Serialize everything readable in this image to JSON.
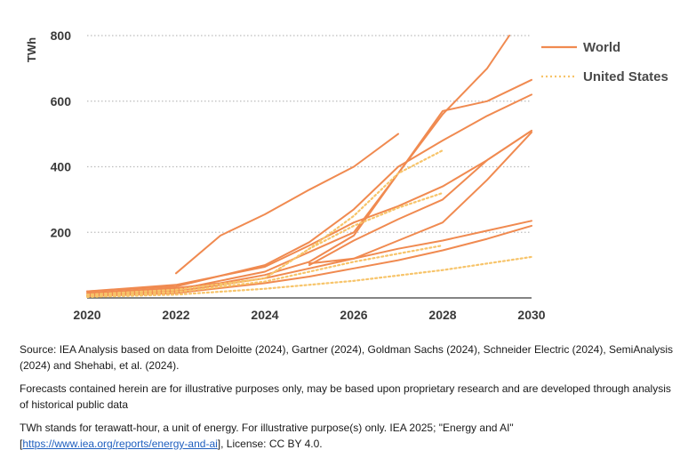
{
  "chart_data": {
    "type": "line",
    "ylabel": "TWh",
    "xlabel": "",
    "xlim": [
      2020,
      2030
    ],
    "ylim": [
      0,
      800
    ],
    "x_ticks": [
      "2020",
      "2022",
      "2024",
      "2026",
      "2028",
      "2030"
    ],
    "y_ticks": [
      "200",
      "400",
      "600",
      "800"
    ],
    "grid": "horizontal dotted",
    "legend_position": "top-right",
    "legend": [
      {
        "label": "World",
        "color": "#f08a50",
        "style": "solid"
      },
      {
        "label": "United States",
        "color": "#f7c46a",
        "style": "dotted"
      }
    ],
    "series": [
      {
        "group": "World",
        "points": [
          [
            2022,
            75
          ],
          [
            2023,
            190
          ],
          [
            2024,
            255
          ],
          [
            2025,
            330
          ],
          [
            2026,
            400
          ],
          [
            2027,
            500
          ]
        ]
      },
      {
        "group": "World",
        "points": [
          [
            2020,
            10
          ],
          [
            2022,
            25
          ],
          [
            2024,
            80
          ],
          [
            2026,
            200
          ],
          [
            2028,
            560
          ],
          [
            2029,
            700
          ],
          [
            2029.5,
            800
          ]
        ]
      },
      {
        "group": "World",
        "points": [
          [
            2020,
            15
          ],
          [
            2022,
            30
          ],
          [
            2023,
            45
          ],
          [
            2024,
            70
          ],
          [
            2025,
            110
          ],
          [
            2026,
            190
          ],
          [
            2027,
            380
          ],
          [
            2028,
            570
          ],
          [
            2029,
            600
          ],
          [
            2030,
            665
          ]
        ]
      },
      {
        "group": "World",
        "points": [
          [
            2020,
            20
          ],
          [
            2022,
            35
          ],
          [
            2024,
            100
          ],
          [
            2025,
            170
          ],
          [
            2026,
            270
          ],
          [
            2027,
            400
          ],
          [
            2028,
            480
          ],
          [
            2029,
            555
          ],
          [
            2030,
            620
          ]
        ]
      },
      {
        "group": "World",
        "points": [
          [
            2020,
            20
          ],
          [
            2022,
            40
          ],
          [
            2024,
            95
          ],
          [
            2025,
            160
          ],
          [
            2026,
            230
          ],
          [
            2027,
            280
          ],
          [
            2028,
            340
          ],
          [
            2029,
            420
          ],
          [
            2030,
            510
          ]
        ]
      },
      {
        "group": "World",
        "points": [
          [
            2025,
            105
          ],
          [
            2026,
            120
          ],
          [
            2027,
            175
          ],
          [
            2028,
            230
          ],
          [
            2029,
            360
          ],
          [
            2030,
            505
          ]
        ]
      },
      {
        "group": "World",
        "points": [
          [
            2025,
            100
          ],
          [
            2026,
            175
          ],
          [
            2027,
            240
          ],
          [
            2028,
            300
          ],
          [
            2029,
            420
          ],
          [
            2030,
            510
          ]
        ]
      },
      {
        "group": "World",
        "points": [
          [
            2020,
            8
          ],
          [
            2022,
            20
          ],
          [
            2024,
            60
          ],
          [
            2025,
            90
          ],
          [
            2026,
            120
          ],
          [
            2027,
            150
          ],
          [
            2028,
            175
          ],
          [
            2029,
            205
          ],
          [
            2030,
            235
          ]
        ]
      },
      {
        "group": "World",
        "points": [
          [
            2020,
            5
          ],
          [
            2022,
            15
          ],
          [
            2024,
            45
          ],
          [
            2025,
            65
          ],
          [
            2026,
            90
          ],
          [
            2027,
            115
          ],
          [
            2028,
            145
          ],
          [
            2029,
            180
          ],
          [
            2030,
            220
          ]
        ]
      },
      {
        "group": "United States",
        "points": [
          [
            2023,
            40
          ],
          [
            2024,
            60
          ],
          [
            2025,
            150
          ],
          [
            2026,
            250
          ],
          [
            2027,
            380
          ],
          [
            2028,
            450
          ]
        ]
      },
      {
        "group": "United States",
        "points": [
          [
            2020,
            10
          ],
          [
            2022,
            25
          ],
          [
            2024,
            60
          ],
          [
            2025,
            150
          ],
          [
            2026,
            220
          ],
          [
            2027,
            275
          ],
          [
            2028,
            320
          ]
        ]
      },
      {
        "group": "United States",
        "points": [
          [
            2020,
            5
          ],
          [
            2022,
            18
          ],
          [
            2024,
            50
          ],
          [
            2025,
            80
          ],
          [
            2026,
            110
          ],
          [
            2027,
            135
          ],
          [
            2028,
            160
          ]
        ]
      },
      {
        "group": "United States",
        "points": [
          [
            2020,
            3
          ],
          [
            2022,
            10
          ],
          [
            2024,
            28
          ],
          [
            2026,
            52
          ],
          [
            2028,
            85
          ],
          [
            2030,
            125
          ]
        ]
      }
    ]
  },
  "notes": {
    "source": "Source: IEA Analysis based on data from Deloitte (2024), Gartner (2024), Goldman Sachs (2024), Schneider Electric (2024), SemiAnalysis (2024) and Shehabi, et al. (2024).",
    "disclaimer": "Forecasts contained herein are for illustrative purposes only, may be based upon proprietary research and are developed through analysis of historical public data",
    "license_prefix": "TWh stands for terawatt-hour, a unit of energy. For illustrative purpose(s) only. IEA 2025; \"Energy and AI\" [",
    "license_link": "https://www.iea.org/reports/energy-and-ai",
    "license_suffix": "], License: CC BY 4.0."
  },
  "colors": {
    "world": "#f08a50",
    "united_states": "#f7c46a",
    "grid": "#bdbdbd",
    "axis": "#3a3a3a"
  }
}
